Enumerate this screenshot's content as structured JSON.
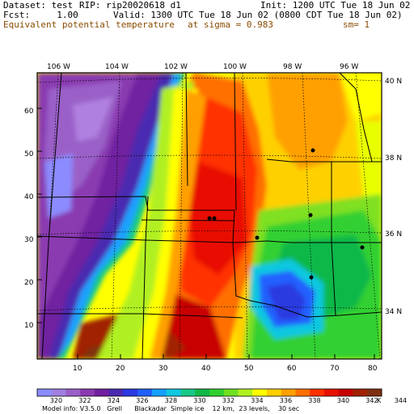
{
  "header": {
    "dataset": "Dataset: test",
    "rip": "RIP: rip20020618 d1",
    "init": "Init: 1200 UTC Tue 18 Jun 02",
    "fcst": "Fcst:     1.00",
    "valid": "Valid: 1300 UTC Tue 18 Jun 02 (0800 CDT Tue 18 Jun 02)",
    "field": "Equivalent potential temperature",
    "sigma": "at sigma = 0.983",
    "sm": "sm= 1"
  },
  "map": {
    "top_longitudes": [
      "106 W",
      "104 W",
      "102 W",
      "100 W",
      "98 W",
      "96 W"
    ],
    "right_latitudes": [
      "40 N",
      "38 N",
      "36 N",
      "34 N"
    ],
    "left_grid_labels": [
      "60",
      "50",
      "40",
      "30",
      "20",
      "10"
    ],
    "bottom_grid_labels": [
      "10",
      "20",
      "30",
      "40",
      "50",
      "60",
      "70",
      "80"
    ]
  },
  "colorbar": {
    "labels": [
      "320",
      "322",
      "324",
      "326",
      "328",
      "330",
      "332",
      "334",
      "336",
      "338",
      "340",
      "342",
      "344"
    ],
    "unit": "K",
    "colors": [
      "#8c8cff",
      "#a07fe0",
      "#9a60c8",
      "#8a3ab0",
      "#7020a0",
      "#4a2ab0",
      "#2a3ae0",
      "#2060ff",
      "#14a0ff",
      "#10c8e0",
      "#18c888",
      "#10b848",
      "#30d030",
      "#70e020",
      "#b0f020",
      "#ffff00",
      "#ffd000",
      "#ffa000",
      "#ff7000",
      "#ff3000",
      "#e81000",
      "#c80000",
      "#a02000",
      "#803010"
    ]
  },
  "footer": {
    "model_info": "Model info: V3.5.0   Grell      Blackadar  Simple ice    12 km,  23 levels,    30 sec"
  }
}
